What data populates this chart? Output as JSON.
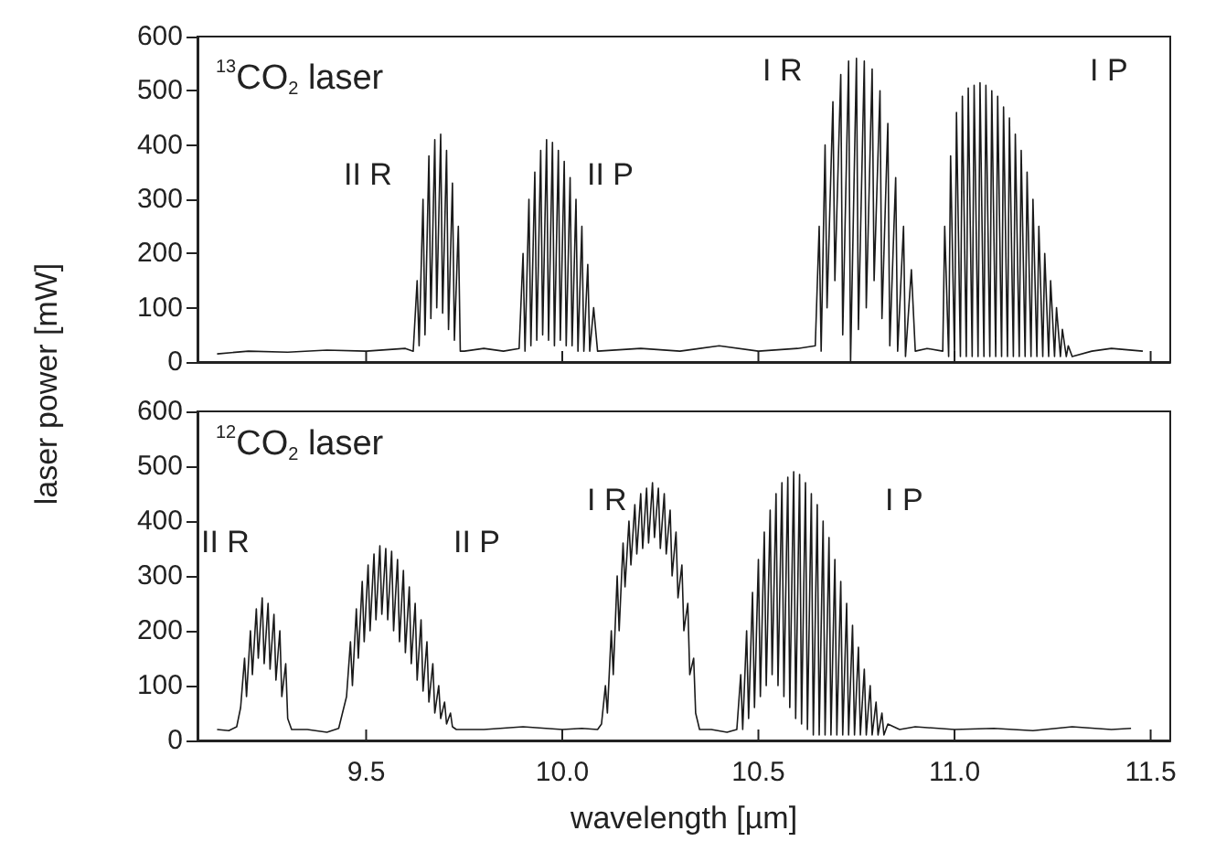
{
  "chart_data": [
    {
      "type": "line",
      "ylabel": "laser power [mW]",
      "color": "#1a1a1a",
      "tick_labels": "y",
      "xlim": [
        9.07,
        11.55
      ],
      "xticks": [
        9.5,
        10,
        10.5,
        11,
        11.5
      ],
      "ylim": [
        0,
        600
      ],
      "yticks": [
        0,
        100,
        200,
        300,
        400,
        500,
        600
      ],
      "annotations": [
        "$^{13}$CO$_{2}$ laser",
        "II R",
        "II P",
        "I R",
        "I P"
      ],
      "x": [
        9.12,
        9.2,
        9.3,
        9.4,
        9.5,
        9.6,
        9.62,
        9.63,
        9.635,
        9.645,
        9.65,
        9.66,
        9.665,
        9.675,
        9.68,
        9.69,
        9.695,
        9.705,
        9.71,
        9.72,
        9.725,
        9.735,
        9.74,
        9.75,
        9.8,
        9.85,
        9.89,
        9.9,
        9.905,
        9.915,
        9.92,
        9.93,
        9.935,
        9.945,
        9.95,
        9.96,
        9.965,
        9.975,
        9.98,
        9.99,
        9.995,
        10.005,
        10.01,
        10.02,
        10.025,
        10.035,
        10.04,
        10.05,
        10.055,
        10.065,
        10.07,
        10.08,
        10.09,
        10.2,
        10.3,
        10.4,
        10.5,
        10.6,
        10.645,
        10.655,
        10.66,
        10.67,
        10.675,
        10.69,
        10.695,
        10.71,
        10.715,
        10.73,
        10.735,
        10.75,
        10.755,
        10.77,
        10.775,
        10.79,
        10.795,
        10.81,
        10.815,
        10.83,
        10.835,
        10.85,
        10.855,
        10.87,
        10.875,
        10.89,
        10.9,
        10.93,
        10.97,
        10.975,
        10.985,
        10.99,
        11.0,
        11.005,
        11.015,
        11.02,
        11.03,
        11.035,
        11.045,
        11.05,
        11.06,
        11.065,
        11.075,
        11.08,
        11.09,
        11.095,
        11.105,
        11.11,
        11.12,
        11.125,
        11.135,
        11.14,
        11.15,
        11.155,
        11.165,
        11.17,
        11.18,
        11.185,
        11.195,
        11.2,
        11.21,
        11.215,
        11.225,
        11.23,
        11.24,
        11.245,
        11.255,
        11.26,
        11.27,
        11.275,
        11.285,
        11.29,
        11.3,
        11.35,
        11.4,
        11.48
      ],
      "values": [
        15,
        20,
        18,
        22,
        20,
        25,
        20,
        150,
        30,
        300,
        50,
        380,
        80,
        410,
        100,
        420,
        90,
        390,
        60,
        330,
        40,
        250,
        20,
        20,
        25,
        20,
        25,
        200,
        20,
        300,
        30,
        350,
        40,
        390,
        50,
        410,
        40,
        405,
        30,
        390,
        40,
        370,
        30,
        340,
        30,
        300,
        20,
        250,
        20,
        180,
        20,
        100,
        20,
        25,
        20,
        30,
        20,
        25,
        30,
        250,
        20,
        400,
        100,
        480,
        150,
        530,
        50,
        555,
        0,
        560,
        60,
        555,
        100,
        540,
        150,
        500,
        80,
        440,
        30,
        340,
        20,
        250,
        10,
        170,
        20,
        25,
        20,
        250,
        10,
        380,
        10,
        460,
        10,
        490,
        10,
        505,
        10,
        510,
        10,
        515,
        10,
        510,
        10,
        500,
        10,
        490,
        10,
        470,
        10,
        450,
        10,
        420,
        10,
        390,
        10,
        350,
        10,
        300,
        10,
        250,
        10,
        200,
        10,
        150,
        10,
        100,
        10,
        60,
        10,
        30,
        10,
        20,
        25,
        20
      ]
    },
    {
      "type": "line",
      "xlabel": "wavelength [µm]",
      "color": "#1a1a1a",
      "xlim": [
        9.07,
        11.55
      ],
      "xticks": [
        9.5,
        {
          "value": 10,
          "label": "10.0"
        },
        10.5,
        {
          "value": 11,
          "label": "11.0"
        },
        11.5
      ],
      "ylim": [
        0,
        600
      ],
      "yticks": [
        0,
        100,
        200,
        300,
        400,
        500,
        600
      ],
      "annotations": [
        "$^{12}$CO$_{2}$ laser",
        "II R",
        "II P",
        "I R",
        "I P"
      ],
      "x": [
        9.12,
        9.15,
        9.17,
        9.18,
        9.19,
        9.195,
        9.205,
        9.21,
        9.22,
        9.225,
        9.235,
        9.24,
        9.25,
        9.255,
        9.265,
        9.27,
        9.28,
        9.285,
        9.295,
        9.3,
        9.31,
        9.35,
        9.4,
        9.43,
        9.45,
        9.46,
        9.465,
        9.475,
        9.48,
        9.49,
        9.495,
        9.505,
        9.51,
        9.52,
        9.525,
        9.535,
        9.54,
        9.55,
        9.555,
        9.565,
        9.57,
        9.58,
        9.585,
        9.595,
        9.6,
        9.61,
        9.615,
        9.625,
        9.63,
        9.64,
        9.645,
        9.655,
        9.66,
        9.67,
        9.675,
        9.685,
        9.69,
        9.7,
        9.705,
        9.715,
        9.72,
        9.73,
        9.8,
        9.9,
        10.0,
        10.05,
        10.09,
        10.1,
        10.11,
        10.115,
        10.125,
        10.13,
        10.14,
        10.145,
        10.155,
        10.16,
        10.17,
        10.175,
        10.185,
        10.19,
        10.2,
        10.205,
        10.215,
        10.22,
        10.23,
        10.235,
        10.245,
        10.25,
        10.26,
        10.265,
        10.275,
        10.28,
        10.29,
        10.295,
        10.305,
        10.31,
        10.32,
        10.325,
        10.335,
        10.34,
        10.35,
        10.38,
        10.42,
        10.445,
        10.455,
        10.46,
        10.47,
        10.475,
        10.485,
        10.49,
        10.5,
        10.505,
        10.515,
        10.52,
        10.53,
        10.535,
        10.545,
        10.55,
        10.56,
        10.565,
        10.575,
        10.58,
        10.59,
        10.595,
        10.605,
        10.61,
        10.62,
        10.625,
        10.635,
        10.64,
        10.65,
        10.655,
        10.665,
        10.67,
        10.68,
        10.685,
        10.695,
        10.7,
        10.71,
        10.715,
        10.725,
        10.73,
        10.74,
        10.745,
        10.755,
        10.76,
        10.77,
        10.775,
        10.785,
        10.79,
        10.8,
        10.805,
        10.815,
        10.82,
        10.83,
        10.86,
        10.9,
        11.0,
        11.1,
        11.2,
        11.3,
        11.4,
        11.45
      ],
      "values": [
        20,
        18,
        25,
        60,
        150,
        80,
        200,
        120,
        240,
        150,
        260,
        140,
        250,
        130,
        230,
        110,
        200,
        80,
        140,
        40,
        20,
        20,
        15,
        22,
        80,
        180,
        100,
        240,
        150,
        290,
        180,
        320,
        200,
        340,
        220,
        355,
        230,
        350,
        220,
        345,
        200,
        330,
        180,
        310,
        160,
        280,
        140,
        250,
        110,
        220,
        90,
        180,
        70,
        140,
        50,
        100,
        40,
        70,
        30,
        50,
        25,
        20,
        20,
        25,
        20,
        22,
        20,
        30,
        100,
        50,
        200,
        120,
        300,
        200,
        360,
        280,
        400,
        320,
        430,
        340,
        450,
        350,
        460,
        360,
        470,
        370,
        460,
        350,
        450,
        340,
        420,
        300,
        380,
        260,
        320,
        200,
        250,
        120,
        150,
        50,
        20,
        20,
        15,
        20,
        120,
        20,
        200,
        40,
        270,
        60,
        330,
        80,
        380,
        100,
        420,
        120,
        450,
        100,
        470,
        80,
        480,
        60,
        490,
        40,
        485,
        30,
        470,
        20,
        450,
        10,
        430,
        10,
        400,
        10,
        370,
        10,
        330,
        10,
        290,
        10,
        250,
        10,
        210,
        10,
        170,
        10,
        130,
        10,
        100,
        10,
        70,
        10,
        50,
        10,
        30,
        20,
        25,
        20,
        22,
        18,
        25,
        20,
        22
      ]
    }
  ]
}
